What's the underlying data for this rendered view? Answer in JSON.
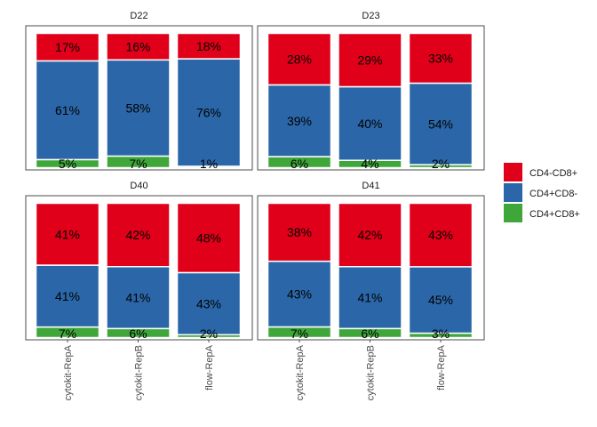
{
  "chart_data": {
    "type": "bar",
    "stacked": true,
    "percent": true,
    "categories": [
      "cytokit-RepA",
      "cytokit-RepB",
      "flow-RepA"
    ],
    "legend": {
      "position": "right",
      "entries": [
        {
          "label": "CD4-CD8+",
          "color": "#e0001a"
        },
        {
          "label": "CD4+CD8-",
          "color": "#2b67a8"
        },
        {
          "label": "CD4+CD8+",
          "color": "#3fa73a"
        }
      ]
    },
    "panels": [
      {
        "title": "D22",
        "series": [
          {
            "name": "CD4+CD8+",
            "values": [
              5,
              7,
              1
            ],
            "labels": [
              "5%",
              "7%",
              "1%"
            ]
          },
          {
            "name": "CD4+CD8-",
            "values": [
              61,
              58,
              76
            ],
            "labels": [
              "61%",
              "58%",
              "76%"
            ]
          },
          {
            "name": "CD4-CD8+",
            "values": [
              17,
              16,
              18
            ],
            "labels": [
              "17%",
              "16%",
              "18%"
            ]
          }
        ]
      },
      {
        "title": "D23",
        "series": [
          {
            "name": "CD4+CD8+",
            "values": [
              6,
              4,
              2
            ],
            "labels": [
              "6%",
              "4%",
              "2%"
            ]
          },
          {
            "name": "CD4+CD8-",
            "values": [
              39,
              40,
              54
            ],
            "labels": [
              "39%",
              "40%",
              "54%"
            ]
          },
          {
            "name": "CD4-CD8+",
            "values": [
              28,
              29,
              33
            ],
            "labels": [
              "28%",
              "29%",
              "33%"
            ]
          }
        ]
      },
      {
        "title": "D40",
        "series": [
          {
            "name": "CD4+CD8+",
            "values": [
              7,
              6,
              2
            ],
            "labels": [
              "7%",
              "6%",
              "2%"
            ]
          },
          {
            "name": "CD4+CD8-",
            "values": [
              41,
              41,
              43
            ],
            "labels": [
              "41%",
              "41%",
              "43%"
            ]
          },
          {
            "name": "CD4-CD8+",
            "values": [
              41,
              42,
              48
            ],
            "labels": [
              "41%",
              "42%",
              "48%"
            ]
          }
        ]
      },
      {
        "title": "D41",
        "series": [
          {
            "name": "CD4+CD8+",
            "values": [
              7,
              6,
              3
            ],
            "labels": [
              "7%",
              "6%",
              "3%"
            ]
          },
          {
            "name": "CD4+CD8-",
            "values": [
              43,
              41,
              45
            ],
            "labels": [
              "43%",
              "41%",
              "45%"
            ]
          },
          {
            "name": "CD4-CD8+",
            "values": [
              38,
              42,
              43
            ],
            "labels": [
              "38%",
              "42%",
              "43%"
            ]
          }
        ]
      }
    ]
  }
}
